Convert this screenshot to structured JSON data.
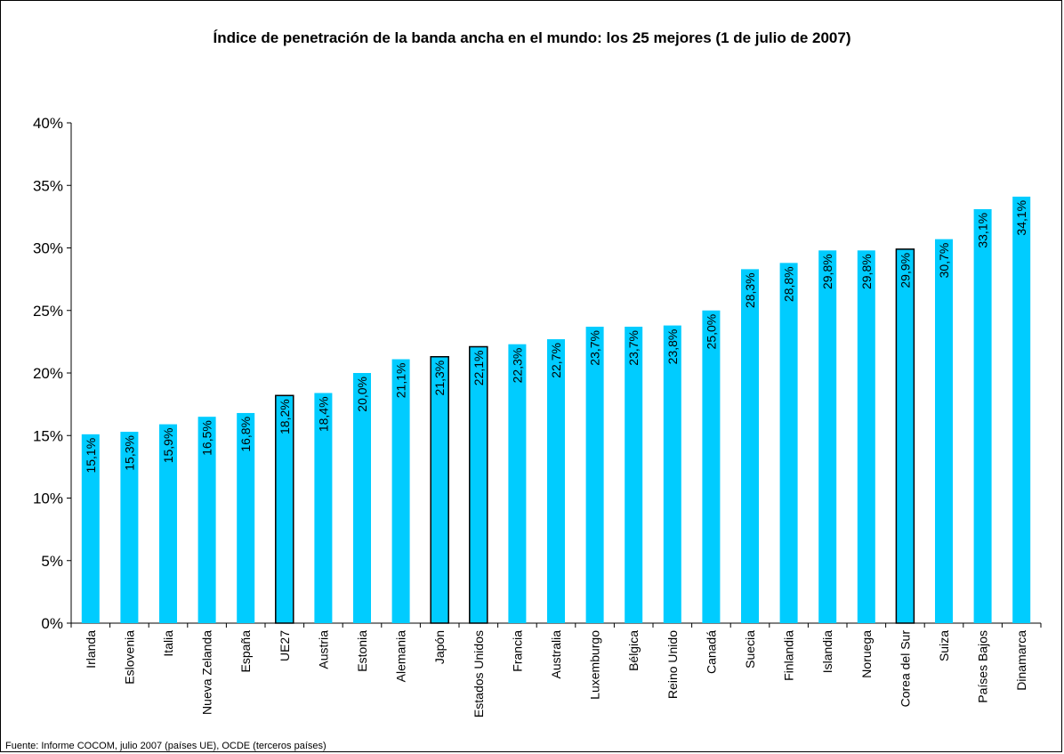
{
  "source_note": "Fuente: Informe COCOM, julio 2007 (países UE), OCDE (terceros países)",
  "colors": {
    "bar": "#00CCFF",
    "highlight_outline": "#000000",
    "axis": "#000000"
  },
  "chart_data": {
    "type": "bar",
    "title": "Índice de penetración de la banda ancha en el mundo: los 25 mejores (1 de julio de 2007)",
    "xlabel": "",
    "ylabel": "",
    "ylim": [
      0,
      40
    ],
    "yticks": [
      "0%",
      "5%",
      "10%",
      "15%",
      "20%",
      "25%",
      "30%",
      "35%",
      "40%"
    ],
    "grid": false,
    "legend": "none",
    "categories": [
      "Irlanda",
      "Eslovenia",
      "Italia",
      "Nueva Zelanda",
      "España",
      "UE27",
      "Austria",
      "Estonia",
      "Alemania",
      "Japón",
      "Estados Unidos",
      "Francia",
      "Australia",
      "Luxemburgo",
      "Bélgica",
      "Reino Unido",
      "Canadá",
      "Suecia",
      "Finlandia",
      "Islandia",
      "Noruega",
      "Corea del Sur",
      "Suiza",
      "Países Bajos",
      "Dinamarca"
    ],
    "values": [
      15.1,
      15.3,
      15.9,
      16.5,
      16.8,
      18.2,
      18.4,
      20.0,
      21.1,
      21.3,
      22.1,
      22.3,
      22.7,
      23.7,
      23.7,
      23.8,
      25.0,
      28.3,
      28.8,
      29.8,
      29.8,
      29.9,
      30.7,
      33.1,
      34.1
    ],
    "data_labels": [
      "15,1%",
      "15,3%",
      "15,9%",
      "16,5%",
      "16,8%",
      "18,2%",
      "18,4%",
      "20,0%",
      "21,1%",
      "21,3%",
      "22,1%",
      "22,3%",
      "22,7%",
      "23,7%",
      "23,7%",
      "23,8%",
      "25,0%",
      "28,3%",
      "28,8%",
      "29,8%",
      "29,8%",
      "29,9%",
      "30,7%",
      "33,1%",
      "34,1%"
    ],
    "highlighted": [
      "UE27",
      "Japón",
      "Estados Unidos",
      "Corea del Sur"
    ]
  }
}
